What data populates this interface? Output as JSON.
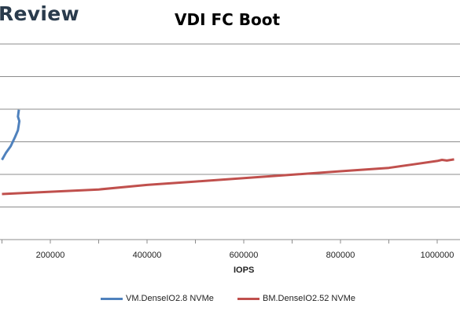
{
  "brand_text": "Review",
  "chart_data": {
    "type": "line",
    "title": "VDI FC Boot",
    "xlabel": "IOPS",
    "ylabel": "",
    "x_ticks": [
      200000,
      400000,
      600000,
      800000,
      1000000
    ],
    "x_tick_labels": [
      "200000",
      "400000",
      "600000",
      "800000",
      "1000000"
    ],
    "xlim": [
      100000,
      1050000
    ],
    "grid": true,
    "legend": "bottom",
    "series": [
      {
        "name": "VM.DenseIO2.8 NVMe",
        "color": "#4f81bd",
        "points": [
          [
            100000,
            0.35
          ],
          [
            108000,
            0.38
          ],
          [
            118000,
            0.41
          ],
          [
            127000,
            0.45
          ],
          [
            133000,
            0.48
          ],
          [
            136000,
            0.52
          ],
          [
            133000,
            0.54
          ],
          [
            135000,
            0.57
          ]
        ]
      },
      {
        "name": "BM.DenseIO2.52 NVMe",
        "color": "#c0504d",
        "points": [
          [
            100000,
            0.2
          ],
          [
            200000,
            0.21
          ],
          [
            300000,
            0.22
          ],
          [
            400000,
            0.24
          ],
          [
            500000,
            0.255
          ],
          [
            600000,
            0.27
          ],
          [
            700000,
            0.285
          ],
          [
            800000,
            0.3
          ],
          [
            900000,
            0.315
          ],
          [
            950000,
            0.33
          ],
          [
            1000000,
            0.345
          ],
          [
            1010000,
            0.35
          ],
          [
            1020000,
            0.347
          ],
          [
            1035000,
            0.352
          ]
        ]
      }
    ]
  }
}
